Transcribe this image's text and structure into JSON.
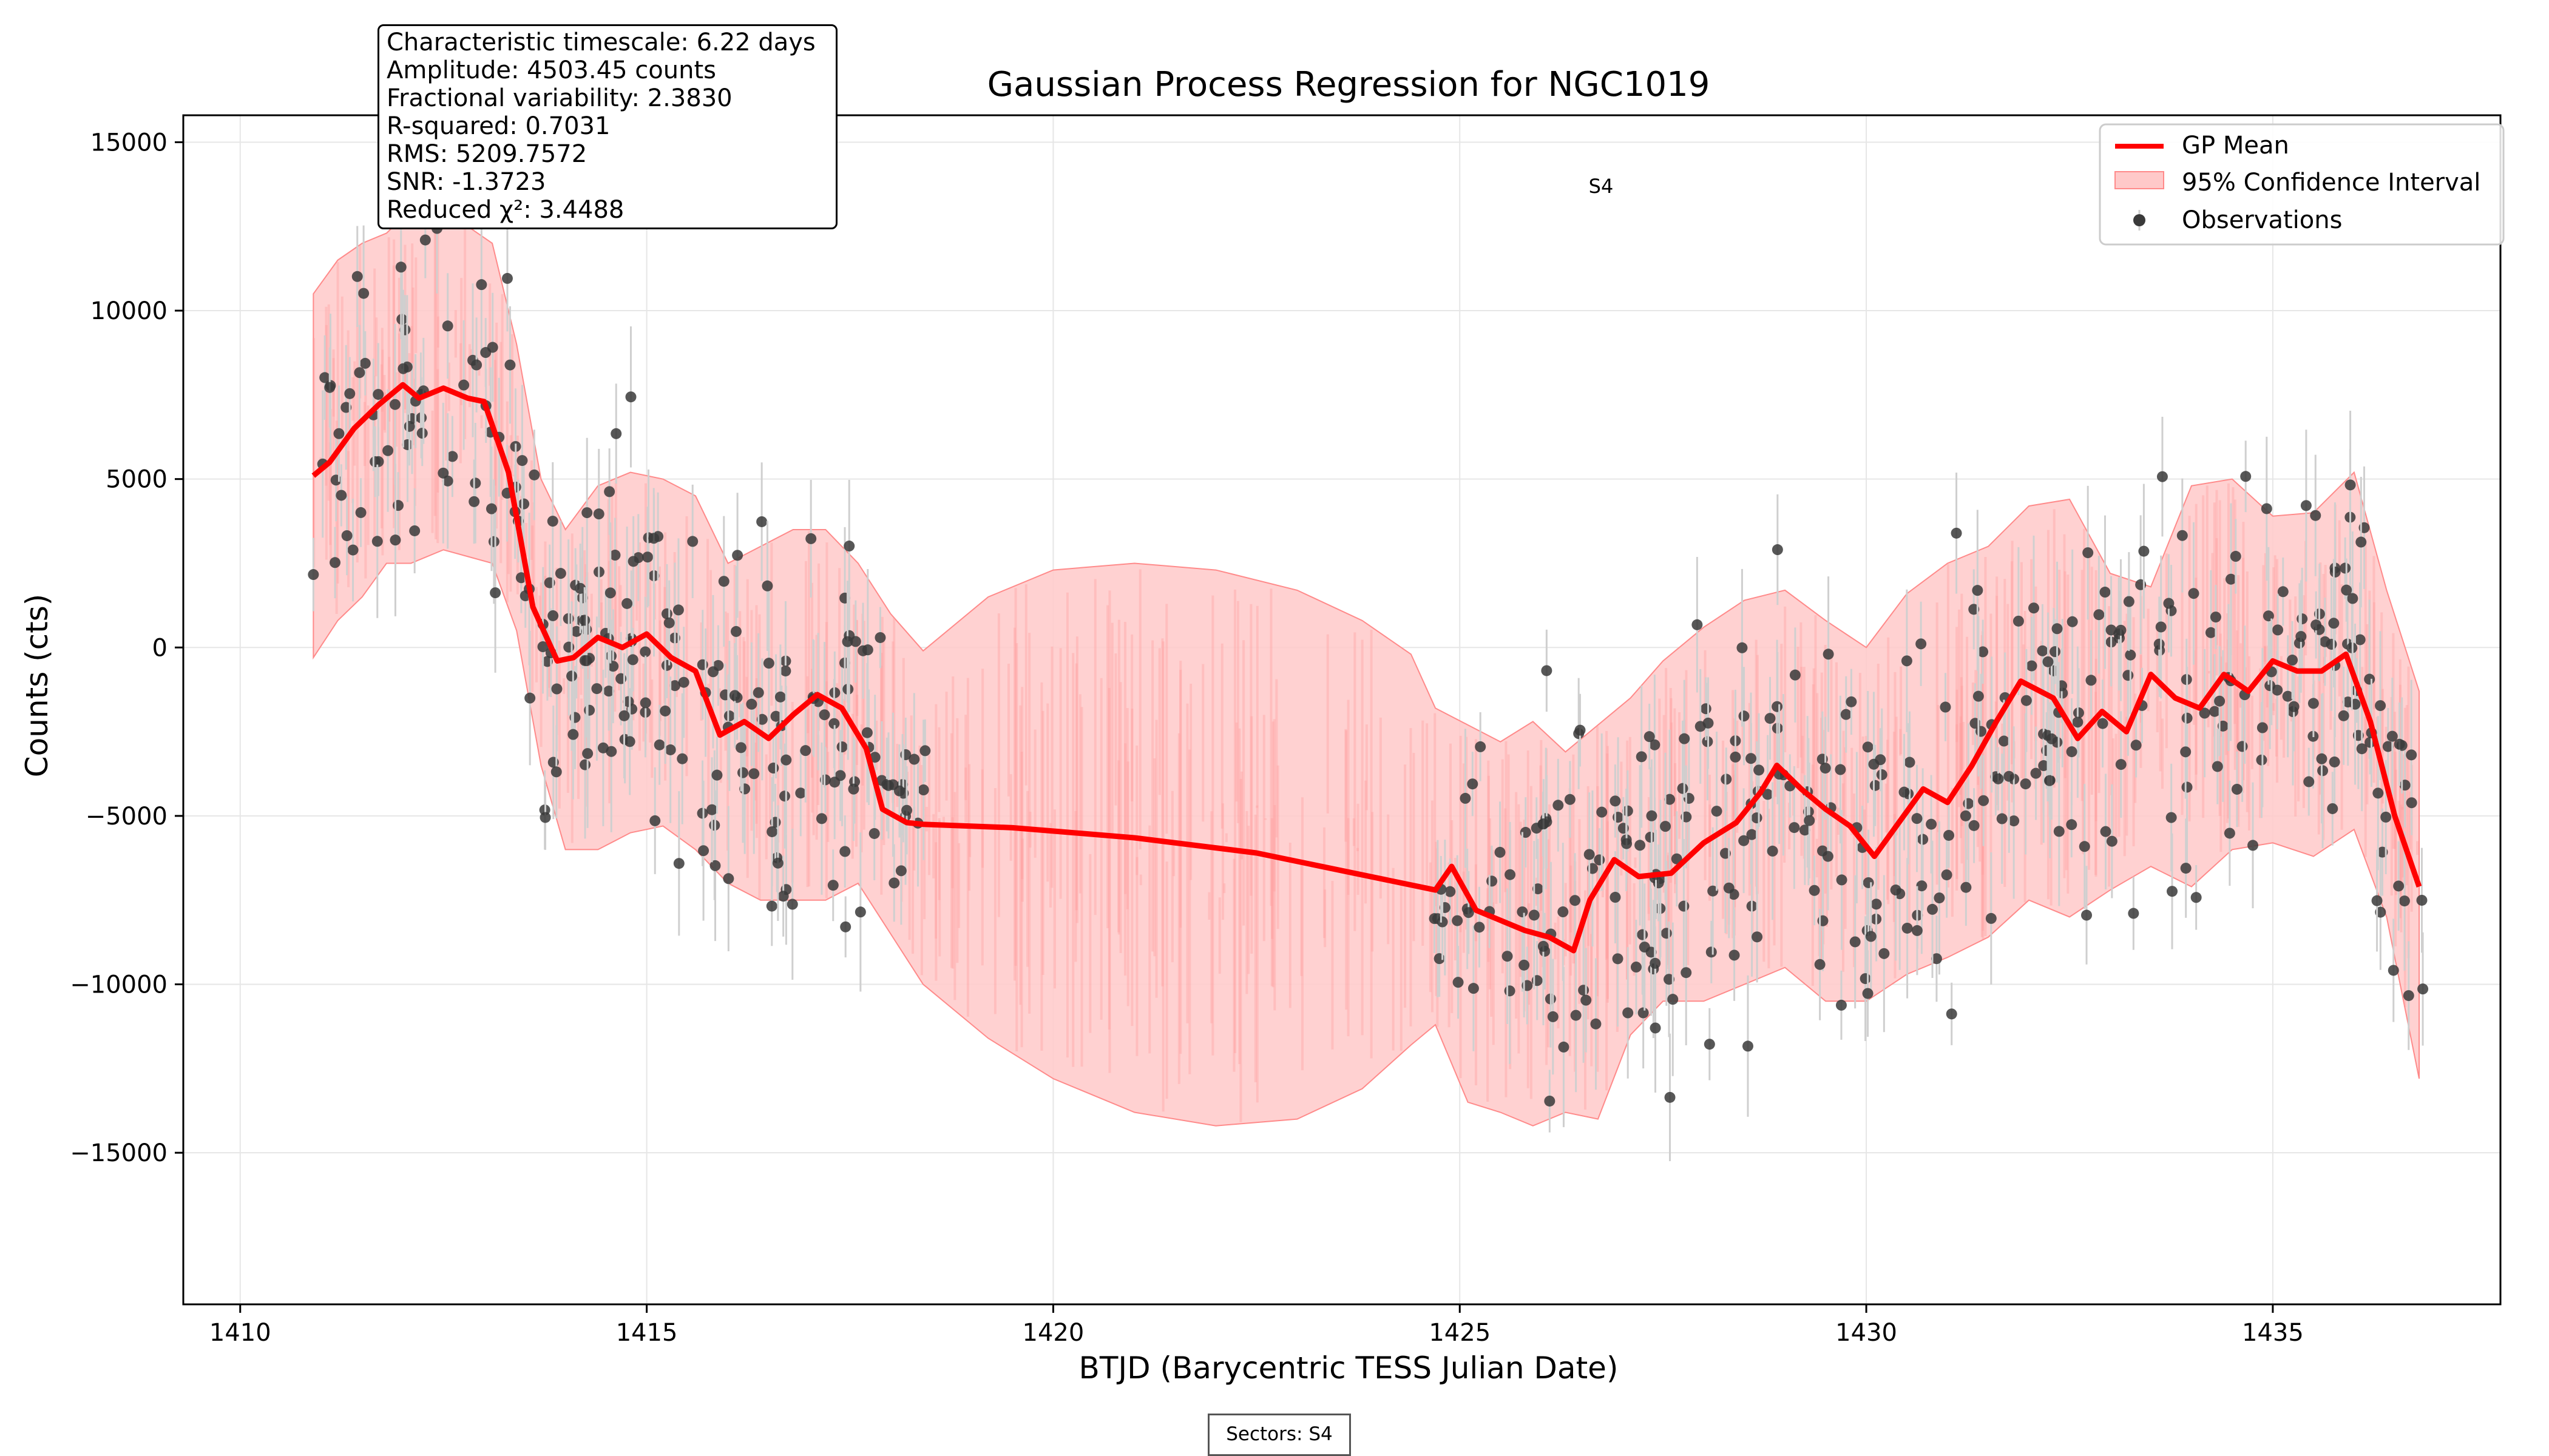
{
  "chart_data": {
    "type": "scatter",
    "title": "Gaussian Process Regression for NGC1019",
    "xlabel": "BTJD (Barycentric TESS Julian Date)",
    "ylabel": "Counts (cts)",
    "xlim": [
      1409.3,
      1437.8
    ],
    "ylim": [
      -19500,
      15800
    ],
    "x_ticks": [
      1410,
      1415,
      1420,
      1425,
      1430,
      1435
    ],
    "y_ticks": [
      -15000,
      -10000,
      -5000,
      0,
      5000,
      10000,
      15000
    ],
    "x_tick_labels": [
      "1410",
      "1415",
      "1420",
      "1425",
      "1430",
      "1435"
    ],
    "y_tick_labels": [
      "−15000",
      "−10000",
      "−5000",
      "0",
      "5000",
      "10000",
      "15000"
    ],
    "grid": true,
    "legend_position": "top-right",
    "legend": [
      "GP Mean",
      "95% Confidence Interval",
      "Observations"
    ],
    "annotation": "S4",
    "gp_mean": {
      "x": [
        1410.9,
        1411.1,
        1411.4,
        1411.7,
        1412.0,
        1412.2,
        1412.5,
        1412.8,
        1413.0,
        1413.3,
        1413.6,
        1413.9,
        1414.1,
        1414.4,
        1414.7,
        1415.0,
        1415.3,
        1415.6,
        1415.9,
        1416.2,
        1416.5,
        1416.8,
        1417.1,
        1417.4,
        1417.7,
        1417.9,
        1418.2,
        1418.4,
        1419.5,
        1421.0,
        1422.5,
        1423.7,
        1424.7,
        1424.9,
        1425.2,
        1425.5,
        1425.8,
        1426.1,
        1426.4,
        1426.6,
        1426.9,
        1427.2,
        1427.6,
        1428.0,
        1428.4,
        1428.7,
        1428.9,
        1429.2,
        1429.5,
        1429.8,
        1430.1,
        1430.4,
        1430.7,
        1431.0,
        1431.3,
        1431.6,
        1431.9,
        1432.3,
        1432.6,
        1432.9,
        1433.2,
        1433.5,
        1433.8,
        1434.1,
        1434.4,
        1434.7,
        1435.0,
        1435.3,
        1435.6,
        1435.9,
        1436.2,
        1436.5,
        1436.8
      ],
      "y": [
        5100,
        5500,
        6500,
        7200,
        7800,
        7400,
        7700,
        7400,
        7300,
        5200,
        1200,
        -400,
        -300,
        300,
        0,
        400,
        -300,
        -700,
        -2600,
        -2200,
        -2700,
        -2000,
        -1400,
        -1800,
        -3000,
        -4800,
        -5200,
        -5250,
        -5350,
        -5650,
        -6100,
        -6700,
        -7200,
        -6500,
        -7800,
        -8100,
        -8400,
        -8600,
        -9000,
        -7500,
        -6300,
        -6800,
        -6700,
        -5800,
        -5200,
        -4300,
        -3500,
        -4200,
        -4800,
        -5300,
        -6200,
        -5200,
        -4200,
        -4600,
        -3500,
        -2200,
        -1000,
        -1500,
        -2700,
        -1900,
        -2500,
        -800,
        -1500,
        -1800,
        -800,
        -1300,
        -400,
        -700,
        -700,
        -200,
        -2200,
        -5000,
        -7100
      ]
    },
    "ci_band": {
      "x": [
        1410.9,
        1411.2,
        1411.5,
        1411.8,
        1412.1,
        1412.5,
        1412.8,
        1413.1,
        1413.4,
        1413.7,
        1414.0,
        1414.4,
        1414.8,
        1415.2,
        1415.6,
        1416.0,
        1416.4,
        1416.8,
        1417.2,
        1417.6,
        1418.0,
        1418.4,
        1419.2,
        1420.0,
        1421.0,
        1422.0,
        1423.0,
        1423.8,
        1424.4,
        1424.7,
        1425.1,
        1425.5,
        1425.9,
        1426.3,
        1426.7,
        1427.1,
        1427.5,
        1428.0,
        1428.5,
        1429.0,
        1429.5,
        1430.0,
        1430.5,
        1431.0,
        1431.5,
        1432.0,
        1432.5,
        1433.0,
        1433.5,
        1434.0,
        1434.5,
        1435.0,
        1435.5,
        1436.0,
        1436.4,
        1436.8
      ],
      "upper": [
        10500,
        11500,
        12000,
        12300,
        13000,
        13000,
        12500,
        12000,
        9000,
        5000,
        3500,
        4800,
        5200,
        5000,
        4500,
        2500,
        3000,
        3500,
        3500,
        2500,
        1000,
        -100,
        1500,
        2300,
        2500,
        2300,
        1700,
        800,
        -200,
        -1800,
        -2300,
        -2800,
        -2200,
        -3100,
        -2300,
        -1500,
        -400,
        600,
        1400,
        1700,
        800,
        0,
        1600,
        2500,
        3000,
        4200,
        4400,
        2200,
        1800,
        4800,
        5000,
        3900,
        4000,
        5200,
        1700,
        -1300
      ],
      "lower": [
        -300,
        800,
        1500,
        2500,
        2500,
        2900,
        2700,
        2500,
        500,
        -3500,
        -6000,
        -6000,
        -5500,
        -5300,
        -6000,
        -7000,
        -7500,
        -7500,
        -7500,
        -7000,
        -8500,
        -10000,
        -11600,
        -12800,
        -13800,
        -14200,
        -14000,
        -13100,
        -11800,
        -11200,
        -13500,
        -13800,
        -14200,
        -13800,
        -14000,
        -11500,
        -10500,
        -10500,
        -10000,
        -9500,
        -10500,
        -10500,
        -9700,
        -9200,
        -8600,
        -7500,
        -8000,
        -7200,
        -6500,
        -7100,
        -6000,
        -5800,
        -6200,
        -5400,
        -8000,
        -12800
      ]
    },
    "obs_seed": 1019,
    "obs_count": 620
  },
  "stats": [
    "Characteristic timescale: 6.22 days",
    "Amplitude: 4503.45 counts",
    "Fractional variability: 2.3830",
    "R-squared: 0.7031",
    "RMS: 5209.7572",
    "SNR: -1.3723",
    "Reduced χ²: 3.4488"
  ],
  "sectors_label": "Sectors: S4",
  "colors": {
    "gp_mean": "#ff0000",
    "ci_fill": "#ffc9c9",
    "ci_edge": "#ff8a8a",
    "observation": "#3a3a3a",
    "errorbar": "#cfcfcf",
    "grid": "#e6e6e6"
  }
}
